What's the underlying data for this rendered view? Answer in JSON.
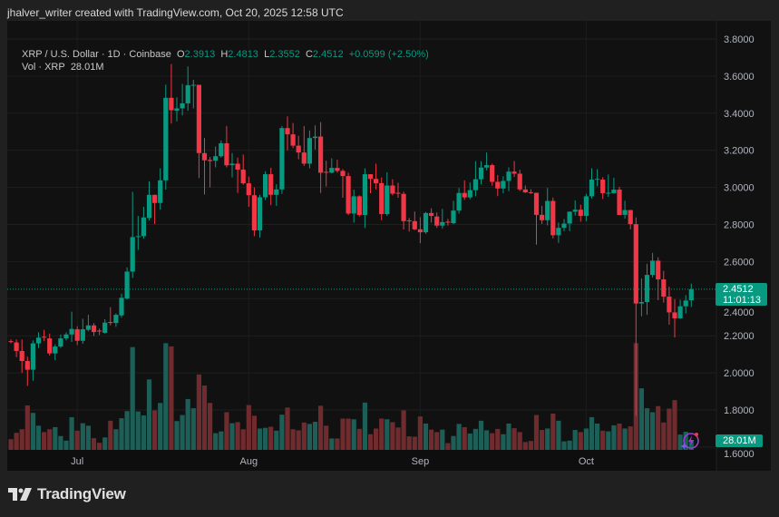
{
  "credit": "jhalver_writer created with TradingView.com, Oct 20, 2025 12:58 UTC",
  "legend": {
    "symbol": "XRP / U.S. Dollar · 1D · Coinbase",
    "o_label": "O",
    "o": "2.3913",
    "h_label": "H",
    "h": "2.4813",
    "l_label": "L",
    "l": "2.3552",
    "c_label": "C",
    "c": "2.4512",
    "change": "+0.0599 (+2.50%)",
    "vol_label": "Vol · XRP",
    "vol": "28.01M"
  },
  "price_tag": {
    "price": "2.4512",
    "countdown": "11:01:13"
  },
  "vol_tag": "28.01M",
  "footer": {
    "brand": "TradingView"
  },
  "colors": {
    "up": "#089981",
    "down": "#f23645",
    "vol_up": "#1d5e57",
    "vol_down": "#6f2b2d",
    "background": "#111111"
  },
  "chart_data": {
    "type": "candlestick",
    "year": 2025,
    "x_ticks": [
      {
        "label": "Jul",
        "date": "Jul 1"
      },
      {
        "label": "Aug",
        "date": "Aug 1"
      },
      {
        "label": "Sep",
        "date": "Sep 1"
      },
      {
        "label": "Oct",
        "date": "Oct 1"
      }
    ],
    "y_ticks": [
      "3.8000",
      "3.6000",
      "3.4000",
      "3.2000",
      "3.0000",
      "2.8000",
      "2.6000",
      "2.4000",
      "2.2000",
      "2.0000",
      "1.8000",
      "1.6000"
    ],
    "ylim": [
      1.6,
      3.8
    ],
    "grid": true,
    "last_price": 2.4512,
    "volume_unit": "M",
    "columns": [
      "date",
      "open",
      "high",
      "low",
      "close",
      "volume"
    ],
    "candles": [
      [
        "Jun 19",
        2.171,
        2.18,
        2.16,
        2.167,
        30
      ],
      [
        "Jun 20",
        2.164,
        2.18,
        2.085,
        2.118,
        48
      ],
      [
        "Jun 21",
        2.118,
        2.18,
        2.0,
        2.064,
        58
      ],
      [
        "Jun 22",
        2.064,
        2.088,
        1.93,
        2.017,
        125
      ],
      [
        "Jun 23",
        2.017,
        2.175,
        1.958,
        2.159,
        104
      ],
      [
        "Jun 24",
        2.159,
        2.219,
        2.134,
        2.19,
        68
      ],
      [
        "Jun 25",
        2.195,
        2.232,
        2.171,
        2.19,
        50
      ],
      [
        "Jun 26",
        2.186,
        2.212,
        2.093,
        2.105,
        58
      ],
      [
        "Jun 27",
        2.105,
        2.154,
        2.069,
        2.142,
        64
      ],
      [
        "Jun 28",
        2.142,
        2.207,
        2.134,
        2.186,
        39
      ],
      [
        "Jun 29",
        2.186,
        2.219,
        2.175,
        2.207,
        26
      ],
      [
        "Jun 30",
        2.207,
        2.33,
        2.167,
        2.237,
        92
      ],
      [
        "Jul 1",
        2.235,
        2.251,
        2.15,
        2.173,
        54
      ],
      [
        "Jul 2",
        2.173,
        2.292,
        2.157,
        2.235,
        75
      ],
      [
        "Jul 3",
        2.232,
        2.313,
        2.224,
        2.256,
        68
      ],
      [
        "Jul 4",
        2.256,
        2.268,
        2.199,
        2.22,
        33
      ],
      [
        "Jul 5",
        2.228,
        2.238,
        2.204,
        2.224,
        20
      ],
      [
        "Jul 6",
        2.216,
        2.289,
        2.212,
        2.271,
        35
      ],
      [
        "Jul 7",
        2.274,
        2.354,
        2.256,
        2.269,
        82
      ],
      [
        "Jul 8",
        2.269,
        2.321,
        2.248,
        2.313,
        58
      ],
      [
        "Jul 9",
        2.31,
        2.427,
        2.297,
        2.405,
        89
      ],
      [
        "Jul 10",
        2.401,
        2.569,
        2.395,
        2.546,
        109
      ],
      [
        "Jul 11",
        2.546,
        2.976,
        2.512,
        2.732,
        289
      ],
      [
        "Jul 12",
        2.732,
        2.846,
        2.663,
        2.737,
        108
      ],
      [
        "Jul 13",
        2.737,
        2.896,
        2.724,
        2.838,
        97
      ],
      [
        "Jul 14",
        2.835,
        3.033,
        2.822,
        2.96,
        198
      ],
      [
        "Jul 15",
        2.96,
        2.96,
        2.802,
        2.916,
        111
      ],
      [
        "Jul 16",
        2.916,
        3.103,
        2.88,
        3.038,
        132
      ],
      [
        "Jul 17",
        3.038,
        3.554,
        2.988,
        3.483,
        300
      ],
      [
        "Jul 18",
        3.483,
        3.665,
        3.344,
        3.416,
        291
      ],
      [
        "Jul 19",
        3.413,
        3.486,
        3.356,
        3.426,
        81
      ],
      [
        "Jul 20",
        3.426,
        3.558,
        3.388,
        3.453,
        98
      ],
      [
        "Jul 21",
        3.453,
        3.652,
        3.413,
        3.551,
        143
      ],
      [
        "Jul 22",
        3.552,
        3.58,
        3.426,
        3.553,
        117
      ],
      [
        "Jul 23",
        3.553,
        3.553,
        3.05,
        3.185,
        212
      ],
      [
        "Jul 24",
        3.185,
        3.266,
        2.962,
        3.146,
        181
      ],
      [
        "Jul 25",
        3.148,
        3.164,
        3.0,
        3.142,
        132
      ],
      [
        "Jul 26",
        3.144,
        3.22,
        3.108,
        3.168,
        47
      ],
      [
        "Jul 27",
        3.168,
        3.253,
        3.16,
        3.238,
        52
      ],
      [
        "Jul 28",
        3.238,
        3.331,
        3.108,
        3.119,
        106
      ],
      [
        "Jul 29",
        3.12,
        3.185,
        3.054,
        3.128,
        75
      ],
      [
        "Jul 30",
        3.128,
        3.161,
        2.97,
        3.096,
        78
      ],
      [
        "Jul 31",
        3.096,
        3.177,
        3.014,
        3.022,
        58
      ],
      [
        "Aug 1",
        3.022,
        3.058,
        2.895,
        2.958,
        126
      ],
      [
        "Aug 2",
        2.958,
        3.0,
        2.737,
        2.768,
        96
      ],
      [
        "Aug 3",
        2.768,
        2.96,
        2.73,
        2.947,
        60
      ],
      [
        "Aug 4",
        2.947,
        3.087,
        2.932,
        3.071,
        62
      ],
      [
        "Aug 5",
        3.071,
        3.106,
        2.904,
        2.96,
        65
      ],
      [
        "Aug 6",
        2.96,
        3.017,
        2.9,
        2.989,
        54
      ],
      [
        "Aug 7",
        2.989,
        3.331,
        2.965,
        3.32,
        99
      ],
      [
        "Aug 8",
        3.32,
        3.383,
        3.2,
        3.286,
        119
      ],
      [
        "Aug 9",
        3.286,
        3.347,
        3.212,
        3.225,
        58
      ],
      [
        "Aug 10",
        3.225,
        3.278,
        3.152,
        3.188,
        55
      ],
      [
        "Aug 11",
        3.188,
        3.331,
        3.116,
        3.128,
        77
      ],
      [
        "Aug 12",
        3.128,
        3.307,
        3.103,
        3.266,
        73
      ],
      [
        "Aug 13",
        3.266,
        3.334,
        3.204,
        3.274,
        79
      ],
      [
        "Aug 14",
        3.274,
        3.352,
        2.97,
        3.079,
        124
      ],
      [
        "Aug 15",
        3.084,
        3.144,
        3.005,
        3.079,
        68
      ],
      [
        "Aug 16",
        3.079,
        3.157,
        3.076,
        3.105,
        32
      ],
      [
        "Aug 17",
        3.105,
        3.149,
        3.079,
        3.089,
        32
      ],
      [
        "Aug 18",
        3.089,
        3.098,
        2.944,
        3.061,
        88
      ],
      [
        "Aug 19",
        3.061,
        3.079,
        2.851,
        2.859,
        88
      ],
      [
        "Aug 20",
        2.859,
        2.988,
        2.81,
        2.952,
        86
      ],
      [
        "Aug 21",
        2.952,
        2.957,
        2.843,
        2.851,
        59
      ],
      [
        "Aug 22",
        2.851,
        3.103,
        2.781,
        3.071,
        133
      ],
      [
        "Aug 23",
        3.071,
        3.071,
        2.969,
        3.046,
        44
      ],
      [
        "Aug 24",
        3.046,
        3.128,
        2.989,
        3.022,
        60
      ],
      [
        "Aug 25",
        3.023,
        3.054,
        2.823,
        2.856,
        88
      ],
      [
        "Aug 26",
        2.856,
        3.082,
        2.846,
        3.01,
        86
      ],
      [
        "Aug 27",
        3.01,
        3.044,
        2.957,
        2.966,
        78
      ],
      [
        "Aug 28",
        2.971,
        3.025,
        2.944,
        2.966,
        63
      ],
      [
        "Aug 29",
        2.965,
        2.977,
        2.773,
        2.818,
        111
      ],
      [
        "Aug 30",
        2.822,
        2.835,
        2.762,
        2.817,
        38
      ],
      [
        "Aug 31",
        2.818,
        2.87,
        2.769,
        2.774,
        37
      ],
      [
        "Sep 1",
        2.774,
        2.839,
        2.699,
        2.758,
        94
      ],
      [
        "Sep 2",
        2.758,
        2.867,
        2.75,
        2.862,
        74
      ],
      [
        "Sep 3",
        2.862,
        2.887,
        2.81,
        2.846,
        57
      ],
      [
        "Sep 4",
        2.843,
        2.865,
        2.782,
        2.794,
        50
      ],
      [
        "Sep 5",
        2.794,
        2.884,
        2.777,
        2.813,
        57
      ],
      [
        "Sep 6",
        2.815,
        2.83,
        2.794,
        2.81,
        19
      ],
      [
        "Sep 7",
        2.807,
        2.928,
        2.802,
        2.875,
        39
      ],
      [
        "Sep 8",
        2.875,
        2.997,
        2.859,
        2.97,
        73
      ],
      [
        "Sep 9",
        2.97,
        3.038,
        2.933,
        2.946,
        64
      ],
      [
        "Sep 10",
        2.946,
        3.027,
        2.936,
        2.985,
        46
      ],
      [
        "Sep 11",
        2.985,
        3.141,
        2.952,
        3.044,
        59
      ],
      [
        "Sep 12",
        3.044,
        3.141,
        3.017,
        3.107,
        82
      ],
      [
        "Sep 13",
        3.107,
        3.188,
        3.092,
        3.12,
        55
      ],
      [
        "Sep 14",
        3.12,
        3.128,
        3.01,
        3.03,
        47
      ],
      [
        "Sep 15",
        3.03,
        3.067,
        2.953,
        2.994,
        59
      ],
      [
        "Sep 16",
        2.994,
        3.06,
        2.968,
        3.035,
        44
      ],
      [
        "Sep 17",
        3.035,
        3.108,
        2.98,
        3.085,
        74
      ],
      [
        "Sep 18",
        3.085,
        3.142,
        3.056,
        3.074,
        61
      ],
      [
        "Sep 19",
        3.074,
        3.095,
        2.98,
        2.989,
        50
      ],
      [
        "Sep 20",
        2.989,
        3.01,
        2.97,
        2.973,
        22
      ],
      [
        "Sep 21",
        2.974,
        2.99,
        2.965,
        2.971,
        25
      ],
      [
        "Sep 22",
        2.971,
        2.971,
        2.691,
        2.852,
        98
      ],
      [
        "Sep 23",
        2.852,
        2.9,
        2.803,
        2.823,
        56
      ],
      [
        "Sep 24",
        2.823,
        2.997,
        2.795,
        2.927,
        60
      ],
      [
        "Sep 25",
        2.927,
        2.945,
        2.725,
        2.742,
        102
      ],
      [
        "Sep 26",
        2.742,
        2.81,
        2.701,
        2.782,
        82
      ],
      [
        "Sep 27",
        2.782,
        2.83,
        2.764,
        2.805,
        24
      ],
      [
        "Sep 28",
        2.805,
        2.87,
        2.764,
        2.869,
        26
      ],
      [
        "Sep 29",
        2.869,
        2.93,
        2.848,
        2.88,
        56
      ],
      [
        "Sep 30",
        2.88,
        2.907,
        2.815,
        2.846,
        50
      ],
      [
        "Oct 1",
        2.846,
        2.965,
        2.818,
        2.952,
        60
      ],
      [
        "Oct 2",
        2.952,
        3.103,
        2.94,
        3.042,
        92
      ],
      [
        "Oct 3",
        3.042,
        3.098,
        3.006,
        3.046,
        74
      ],
      [
        "Oct 4",
        3.042,
        3.055,
        2.937,
        2.969,
        54
      ],
      [
        "Oct 5",
        2.969,
        3.07,
        2.949,
        2.971,
        52
      ],
      [
        "Oct 6",
        2.969,
        3.052,
        2.966,
        2.988,
        69
      ],
      [
        "Oct 7",
        2.988,
        3.003,
        2.851,
        2.851,
        74
      ],
      [
        "Oct 8",
        2.852,
        2.928,
        2.831,
        2.878,
        60
      ],
      [
        "Oct 9",
        2.878,
        2.878,
        2.774,
        2.802,
        66
      ],
      [
        "Oct 10",
        2.802,
        2.838,
        1.768,
        2.374,
        300
      ],
      [
        "Oct 11",
        2.374,
        2.509,
        2.305,
        2.382,
        173
      ],
      [
        "Oct 12",
        2.382,
        2.587,
        2.313,
        2.528,
        117
      ],
      [
        "Oct 13",
        2.528,
        2.647,
        2.514,
        2.605,
        106
      ],
      [
        "Oct 14",
        2.605,
        2.623,
        2.392,
        2.504,
        123
      ],
      [
        "Oct 15",
        2.504,
        2.55,
        2.379,
        2.411,
        77
      ],
      [
        "Oct 16",
        2.411,
        2.464,
        2.26,
        2.326,
        116
      ],
      [
        "Oct 17",
        2.326,
        2.397,
        2.191,
        2.294,
        140
      ],
      [
        "Oct 18",
        2.294,
        2.394,
        2.292,
        2.359,
        43
      ],
      [
        "Oct 19",
        2.359,
        2.419,
        2.32,
        2.39,
        51
      ],
      [
        "Oct 20",
        2.3913,
        2.4813,
        2.3552,
        2.4512,
        28.01
      ]
    ]
  }
}
